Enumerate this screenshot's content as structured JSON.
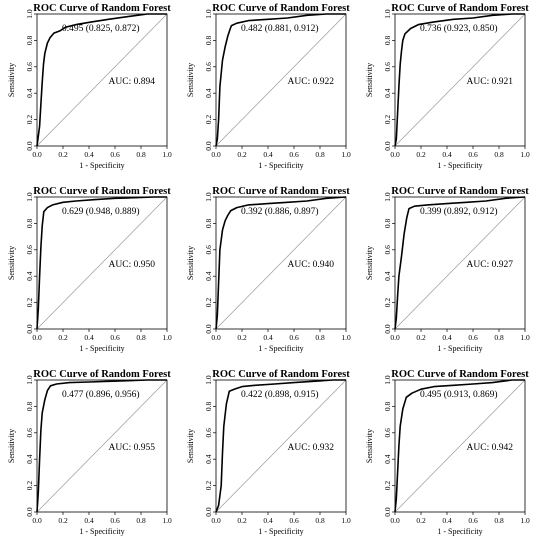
{
  "chart_data": [
    {
      "type": "line",
      "title": "ROC Curve of Random Forest",
      "xlabel": "1 - Specificity",
      "ylabel": "Sensitivity",
      "xlim": [
        0,
        1
      ],
      "ylim": [
        0,
        1
      ],
      "xticks": [
        "0.0",
        "0.2",
        "0.4",
        "0.6",
        "0.8",
        "1.0"
      ],
      "yticks": [
        "0.0",
        "0.2",
        "0.4",
        "0.6",
        "0.8",
        "1.0"
      ],
      "threshold_annotation": "0.495 (0.825, 0.872)",
      "auc_label": "AUC: 0.894",
      "x": [
        0,
        0.02,
        0.03,
        0.04,
        0.05,
        0.06,
        0.08,
        0.1,
        0.13,
        0.175,
        0.22,
        0.3,
        0.42,
        0.55,
        0.7,
        0.85,
        1.0
      ],
      "y": [
        0,
        0.15,
        0.32,
        0.48,
        0.62,
        0.7,
        0.78,
        0.82,
        0.855,
        0.872,
        0.9,
        0.92,
        0.94,
        0.96,
        0.98,
        1.0,
        1.0
      ]
    },
    {
      "type": "line",
      "title": "ROC Curve of Random Forest",
      "xlabel": "1 - Specificity",
      "ylabel": "Sensitivity",
      "xlim": [
        0,
        1
      ],
      "ylim": [
        0,
        1
      ],
      "xticks": [
        "0.0",
        "0.2",
        "0.4",
        "0.6",
        "0.8",
        "1.0"
      ],
      "yticks": [
        "0.0",
        "0.2",
        "0.4",
        "0.6",
        "0.8",
        "1.0"
      ],
      "threshold_annotation": "0.482 (0.881, 0.912)",
      "auc_label": "AUC: 0.922",
      "x": [
        0,
        0.01,
        0.02,
        0.03,
        0.05,
        0.07,
        0.09,
        0.11,
        0.119,
        0.16,
        0.25,
        0.4,
        0.55,
        0.7,
        0.85,
        1.0
      ],
      "y": [
        0,
        0.05,
        0.2,
        0.45,
        0.65,
        0.75,
        0.83,
        0.89,
        0.912,
        0.93,
        0.95,
        0.96,
        0.97,
        0.99,
        1.0,
        1.0
      ]
    },
    {
      "type": "line",
      "title": "ROC Curve of Random Forest",
      "xlabel": "1 - Specificity",
      "ylabel": "Sensitivity",
      "xlim": [
        0,
        1
      ],
      "ylim": [
        0,
        1
      ],
      "xticks": [
        "0.0",
        "0.2",
        "0.4",
        "0.6",
        "0.8",
        "1.0"
      ],
      "yticks": [
        "0.0",
        "0.2",
        "0.4",
        "0.6",
        "0.8",
        "1.0"
      ],
      "threshold_annotation": "0.736 (0.923, 0.850)",
      "auc_label": "AUC: 0.921",
      "x": [
        0,
        0.01,
        0.02,
        0.03,
        0.04,
        0.05,
        0.06,
        0.077,
        0.12,
        0.18,
        0.3,
        0.45,
        0.6,
        0.75,
        0.9,
        1.0
      ],
      "y": [
        0,
        0.05,
        0.25,
        0.45,
        0.62,
        0.72,
        0.8,
        0.85,
        0.89,
        0.92,
        0.94,
        0.96,
        0.97,
        0.99,
        1.0,
        1.0
      ]
    },
    {
      "type": "line",
      "title": "ROC Curve of Random Forest",
      "xlabel": "1 - Specificity",
      "ylabel": "Sensitivity",
      "xlim": [
        0,
        1
      ],
      "ylim": [
        0,
        1
      ],
      "xticks": [
        "0.0",
        "0.2",
        "0.4",
        "0.6",
        "0.8",
        "1.0"
      ],
      "yticks": [
        "0.0",
        "0.2",
        "0.4",
        "0.6",
        "0.8",
        "1.0"
      ],
      "threshold_annotation": "0.629 (0.948, 0.889)",
      "auc_label": "AUC: 0.950",
      "x": [
        0,
        0.01,
        0.02,
        0.03,
        0.04,
        0.052,
        0.08,
        0.12,
        0.2,
        0.3,
        0.45,
        0.6,
        0.75,
        0.9,
        1.0
      ],
      "y": [
        0,
        0.15,
        0.4,
        0.62,
        0.78,
        0.889,
        0.92,
        0.94,
        0.96,
        0.97,
        0.98,
        0.99,
        0.995,
        1.0,
        1.0
      ]
    },
    {
      "type": "line",
      "title": "ROC Curve of Random Forest",
      "xlabel": "1 - Specificity",
      "ylabel": "Sensitivity",
      "xlim": [
        0,
        1
      ],
      "ylim": [
        0,
        1
      ],
      "xticks": [
        "0.0",
        "0.2",
        "0.4",
        "0.6",
        "0.8",
        "1.0"
      ],
      "yticks": [
        "0.0",
        "0.2",
        "0.4",
        "0.6",
        "0.8",
        "1.0"
      ],
      "threshold_annotation": "0.392 (0.886, 0.897)",
      "auc_label": "AUC: 0.940",
      "x": [
        0,
        0.01,
        0.02,
        0.03,
        0.05,
        0.07,
        0.09,
        0.114,
        0.16,
        0.25,
        0.4,
        0.55,
        0.7,
        0.85,
        1.0
      ],
      "y": [
        0,
        0.1,
        0.35,
        0.6,
        0.75,
        0.82,
        0.86,
        0.897,
        0.92,
        0.94,
        0.95,
        0.96,
        0.97,
        0.99,
        1.0
      ]
    },
    {
      "type": "line",
      "title": "ROC Curve of Random Forest",
      "xlabel": "1 - Specificity",
      "ylabel": "Sensitivity",
      "xlim": [
        0,
        1
      ],
      "ylim": [
        0,
        1
      ],
      "xticks": [
        "0.0",
        "0.2",
        "0.4",
        "0.6",
        "0.8",
        "1.0"
      ],
      "yticks": [
        "0.0",
        "0.2",
        "0.4",
        "0.6",
        "0.8",
        "1.0"
      ],
      "threshold_annotation": "0.399 (0.892, 0.912)",
      "auc_label": "AUC: 0.927",
      "x": [
        0,
        0.01,
        0.02,
        0.03,
        0.05,
        0.07,
        0.09,
        0.108,
        0.15,
        0.25,
        0.4,
        0.55,
        0.7,
        0.85,
        1.0
      ],
      "y": [
        0,
        0.08,
        0.25,
        0.4,
        0.55,
        0.72,
        0.84,
        0.912,
        0.93,
        0.94,
        0.95,
        0.96,
        0.97,
        0.99,
        1.0
      ]
    },
    {
      "type": "line",
      "title": "ROC Curve of Random Forest",
      "xlabel": "1 - Specificity",
      "ylabel": "Sensitivity",
      "xlim": [
        0,
        1
      ],
      "ylim": [
        0,
        1
      ],
      "xticks": [
        "0.0",
        "0.2",
        "0.4",
        "0.6",
        "0.8",
        "1.0"
      ],
      "yticks": [
        "0.0",
        "0.2",
        "0.4",
        "0.6",
        "0.8",
        "1.0"
      ],
      "threshold_annotation": "0.477 (0.896, 0.956)",
      "auc_label": "AUC: 0.955",
      "x": [
        0,
        0.01,
        0.02,
        0.03,
        0.04,
        0.06,
        0.08,
        0.104,
        0.15,
        0.25,
        0.4,
        0.55,
        0.7,
        0.85,
        1.0
      ],
      "y": [
        0,
        0.15,
        0.4,
        0.62,
        0.75,
        0.85,
        0.92,
        0.956,
        0.97,
        0.98,
        0.985,
        0.99,
        0.995,
        1.0,
        1.0
      ]
    },
    {
      "type": "line",
      "title": "ROC Curve of Random Forest",
      "xlabel": "1 - Specificity",
      "ylabel": "Sensitivity",
      "xlim": [
        0,
        1
      ],
      "ylim": [
        0,
        1
      ],
      "xticks": [
        "0.0",
        "0.2",
        "0.4",
        "0.6",
        "0.8",
        "1.0"
      ],
      "yticks": [
        "0.0",
        "0.2",
        "0.4",
        "0.6",
        "0.8",
        "1.0"
      ],
      "threshold_annotation": "0.422 (0.898, 0.915)",
      "auc_label": "AUC: 0.932",
      "x": [
        0,
        0.02,
        0.04,
        0.05,
        0.06,
        0.08,
        0.102,
        0.14,
        0.2,
        0.3,
        0.45,
        0.6,
        0.75,
        0.9,
        1.0
      ],
      "y": [
        0,
        0.05,
        0.2,
        0.45,
        0.65,
        0.82,
        0.915,
        0.93,
        0.95,
        0.96,
        0.97,
        0.98,
        0.99,
        1.0,
        1.0
      ]
    },
    {
      "type": "line",
      "title": "ROC Curve of Random Forest",
      "xlabel": "1 - Specificity",
      "ylabel": "Sensitivity",
      "xlim": [
        0,
        1
      ],
      "ylim": [
        0,
        1
      ],
      "xticks": [
        "0.0",
        "0.2",
        "0.4",
        "0.6",
        "0.8",
        "1.0"
      ],
      "yticks": [
        "0.0",
        "0.2",
        "0.4",
        "0.6",
        "0.8",
        "1.0"
      ],
      "threshold_annotation": "0.495 (0.913, 0.869)",
      "auc_label": "AUC: 0.942",
      "x": [
        0,
        0.01,
        0.02,
        0.03,
        0.04,
        0.06,
        0.087,
        0.13,
        0.2,
        0.3,
        0.45,
        0.6,
        0.75,
        0.9,
        1.0
      ],
      "y": [
        0,
        0.1,
        0.3,
        0.5,
        0.65,
        0.78,
        0.869,
        0.9,
        0.93,
        0.95,
        0.96,
        0.97,
        0.98,
        1.0,
        1.0
      ]
    }
  ]
}
